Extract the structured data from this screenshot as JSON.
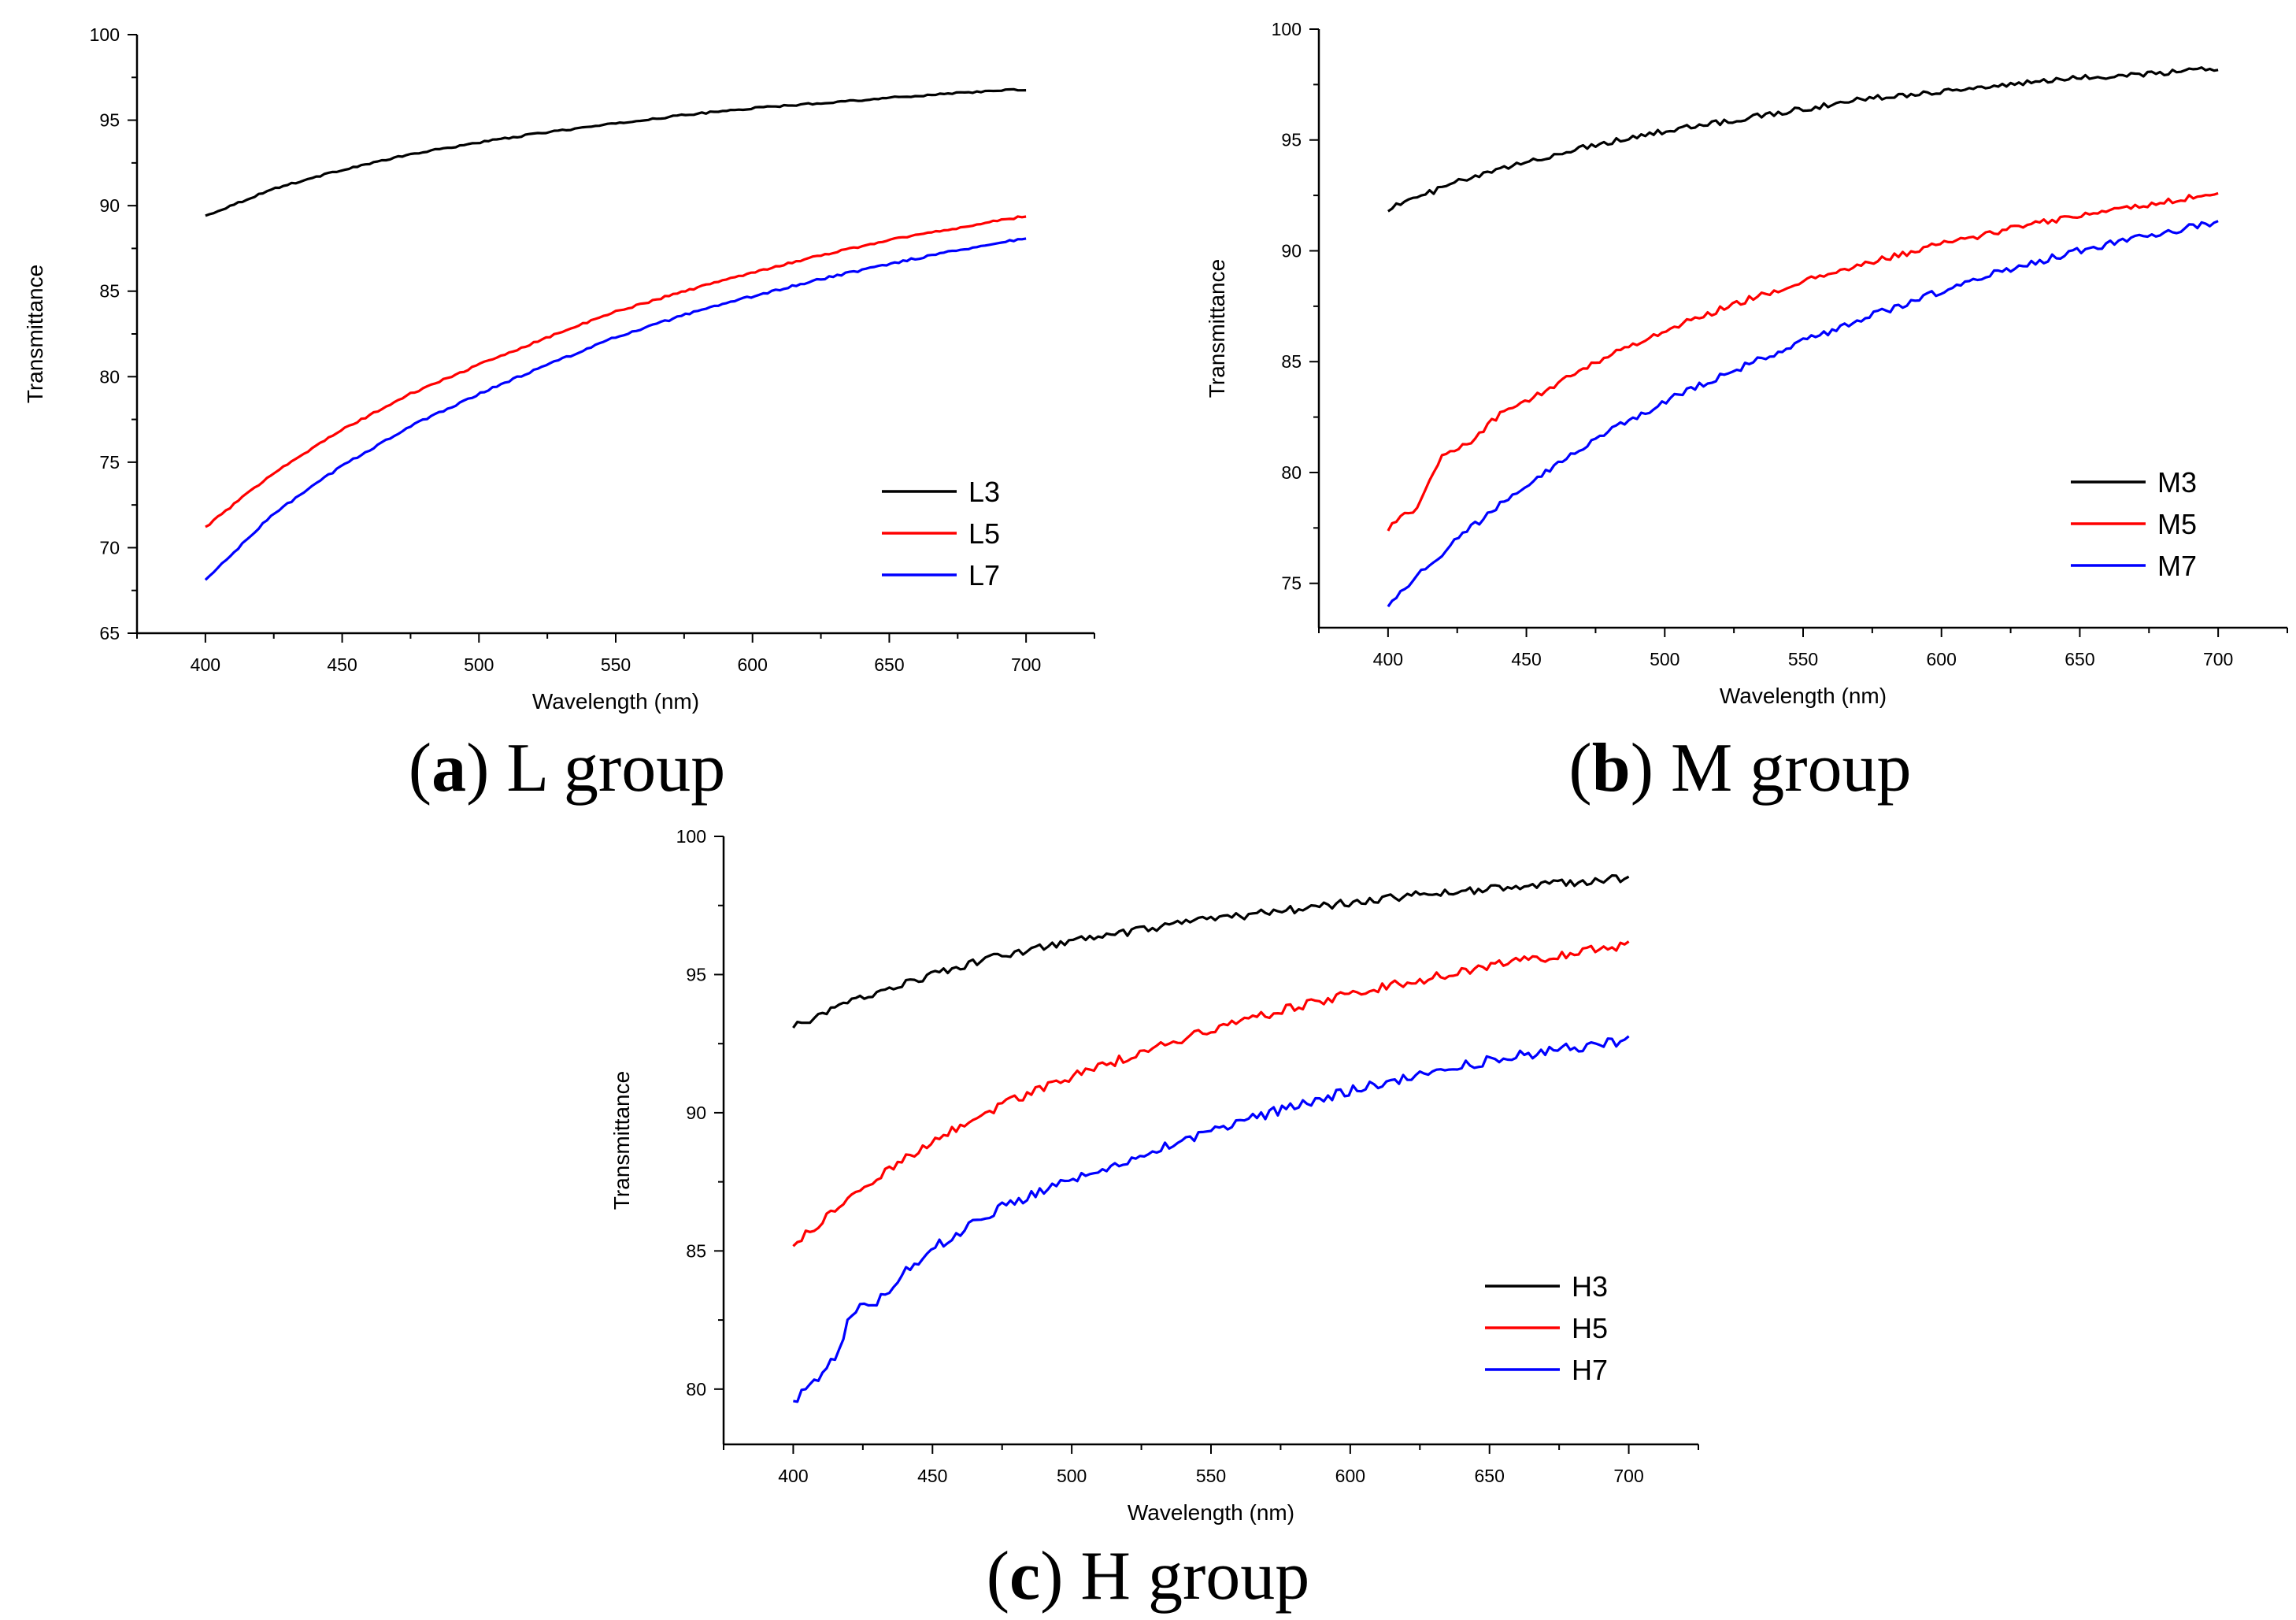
{
  "figure": {
    "captions": [
      {
        "open": "(",
        "letter": "a",
        "close": ")",
        "text": " L group"
      },
      {
        "open": "(",
        "letter": "b",
        "close": ")",
        "text": " M group"
      },
      {
        "open": "(",
        "letter": "c",
        "close": ")",
        "text": " H group"
      }
    ]
  },
  "chart_data": [
    {
      "type": "line",
      "id": "a",
      "xlabel": "Wavelength (nm)",
      "ylabel": "Transmittance",
      "xlim": [
        375,
        725
      ],
      "ylim": [
        65,
        100
      ],
      "xticks": [
        400,
        450,
        500,
        550,
        600,
        650,
        700
      ],
      "yticks": [
        65,
        70,
        75,
        80,
        85,
        90,
        95,
        100
      ],
      "legend_position": "bottom-right",
      "noise": 0.05,
      "series": [
        {
          "name": "L3",
          "color": "#000000",
          "x": [
            400,
            425,
            450,
            475,
            500,
            525,
            550,
            575,
            600,
            625,
            650,
            675,
            700
          ],
          "y": [
            89.4,
            91.0,
            92.1,
            93.0,
            93.7,
            94.3,
            94.8,
            95.3,
            95.7,
            96.0,
            96.3,
            96.6,
            96.8
          ]
        },
        {
          "name": "L5",
          "color": "#ff0000",
          "x": [
            400,
            425,
            450,
            475,
            500,
            525,
            550,
            575,
            600,
            625,
            650,
            675,
            700
          ],
          "y": [
            71.2,
            74.4,
            76.9,
            79.0,
            80.7,
            82.3,
            83.8,
            85.0,
            86.1,
            87.1,
            88.0,
            88.7,
            89.4
          ]
        },
        {
          "name": "L7",
          "color": "#0000ff",
          "x": [
            400,
            425,
            450,
            475,
            500,
            525,
            550,
            575,
            600,
            625,
            650,
            675,
            700
          ],
          "y": [
            68.1,
            72.0,
            74.8,
            77.1,
            79.0,
            80.7,
            82.3,
            83.6,
            84.7,
            85.7,
            86.6,
            87.4,
            88.1
          ]
        }
      ]
    },
    {
      "type": "line",
      "id": "b",
      "xlabel": "Wavelength (nm)",
      "ylabel": "Transmittance",
      "xlim": [
        375,
        725
      ],
      "ylim": [
        73,
        100
      ],
      "xticks": [
        400,
        450,
        500,
        550,
        600,
        650,
        700
      ],
      "yticks": [
        75,
        80,
        85,
        90,
        95,
        100
      ],
      "legend_position": "bottom-right",
      "noise": 0.12,
      "series": [
        {
          "name": "M3",
          "color": "#000000",
          "x": [
            400,
            425,
            450,
            475,
            500,
            525,
            550,
            575,
            600,
            625,
            650,
            675,
            700
          ],
          "y": [
            91.9,
            93.1,
            94.0,
            94.8,
            95.4,
            95.9,
            96.4,
            96.9,
            97.2,
            97.5,
            97.8,
            98.0,
            98.2
          ]
        },
        {
          "name": "M5",
          "color": "#ff0000",
          "x": [
            400,
            410,
            420,
            430,
            440,
            450,
            475,
            500,
            525,
            550,
            575,
            600,
            625,
            650,
            675,
            700
          ],
          "y": [
            77.5,
            78.4,
            80.8,
            81.4,
            82.6,
            83.2,
            85.0,
            86.4,
            87.6,
            88.6,
            89.5,
            90.3,
            91.0,
            91.6,
            92.1,
            92.6
          ]
        },
        {
          "name": "M7",
          "color": "#0000ff",
          "x": [
            400,
            425,
            450,
            475,
            500,
            525,
            550,
            575,
            600,
            625,
            650,
            675,
            700
          ],
          "y": [
            74.1,
            77.0,
            79.5,
            81.5,
            83.2,
            84.6,
            85.9,
            87.1,
            88.2,
            89.2,
            90.0,
            90.7,
            91.3
          ]
        }
      ]
    },
    {
      "type": "line",
      "id": "c",
      "xlabel": "Wavelength (nm)",
      "ylabel": "Transmittance",
      "xlim": [
        375,
        725
      ],
      "ylim": [
        78,
        100
      ],
      "xticks": [
        400,
        450,
        500,
        550,
        600,
        650,
        700
      ],
      "yticks": [
        80,
        85,
        90,
        95,
        100
      ],
      "legend_position": "bottom-right",
      "noise": 0.14,
      "series": [
        {
          "name": "H3",
          "color": "#000000",
          "x": [
            400,
            425,
            450,
            475,
            500,
            525,
            550,
            575,
            600,
            625,
            650,
            675,
            700
          ],
          "y": [
            93.1,
            94.2,
            95.0,
            95.7,
            96.2,
            96.6,
            97.0,
            97.3,
            97.6,
            97.9,
            98.1,
            98.3,
            98.5
          ]
        },
        {
          "name": "H5",
          "color": "#ff0000",
          "x": [
            400,
            425,
            450,
            475,
            500,
            525,
            550,
            575,
            600,
            625,
            650,
            675,
            700
          ],
          "y": [
            85.2,
            87.3,
            89.0,
            90.3,
            91.3,
            92.2,
            93.0,
            93.7,
            94.3,
            94.8,
            95.3,
            95.7,
            96.1
          ]
        },
        {
          "name": "H7",
          "color": "#0000ff",
          "x": [
            400,
            410,
            415,
            420,
            425,
            430,
            440,
            450,
            475,
            500,
            525,
            550,
            575,
            600,
            625,
            650,
            675,
            700
          ],
          "y": [
            79.6,
            80.4,
            81.2,
            82.5,
            83.0,
            83.2,
            84.2,
            85.1,
            86.6,
            87.6,
            88.5,
            89.3,
            90.1,
            90.8,
            91.4,
            91.9,
            92.3,
            92.6
          ]
        }
      ]
    }
  ]
}
